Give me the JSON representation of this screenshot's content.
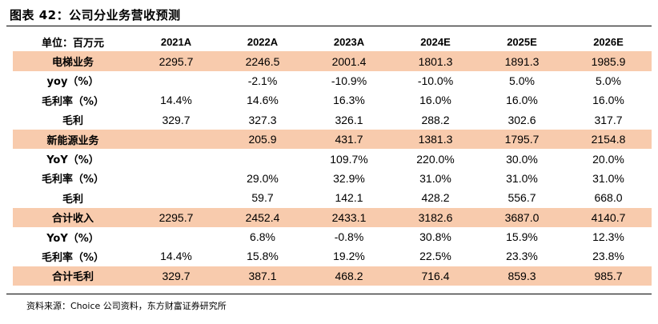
{
  "title": "图表 42：公司分业务营收预测",
  "source": "资料来源：Choice 公司资料，东方财富证券研究所",
  "header": [
    "单位：百万元",
    "2021A",
    "2022A",
    "2023A",
    "2024E",
    "2025E",
    "2026E"
  ],
  "highlight_color": "#f8cbad",
  "rows": [
    {
      "label": "电梯业务",
      "values": [
        "2295.7",
        "2246.5",
        "2001.4",
        "1801.3",
        "1891.3",
        "1985.9"
      ],
      "highlight": true
    },
    {
      "label": "yoy（%）",
      "values": [
        "",
        "-2.1%",
        "-10.9%",
        "-10.0%",
        "5.0%",
        "5.0%"
      ],
      "highlight": false
    },
    {
      "label": "毛利率（%）",
      "values": [
        "14.4%",
        "14.6%",
        "16.3%",
        "16.0%",
        "16.0%",
        "16.0%"
      ],
      "highlight": false
    },
    {
      "label": "毛利",
      "values": [
        "329.7",
        "327.3",
        "326.1",
        "288.2",
        "302.6",
        "317.7"
      ],
      "highlight": false
    },
    {
      "label": "新能源业务",
      "values": [
        "",
        "205.9",
        "431.7",
        "1381.3",
        "1795.7",
        "2154.8"
      ],
      "highlight": true
    },
    {
      "label": "YoY（%）",
      "values": [
        "",
        "",
        "109.7%",
        "220.0%",
        "30.0%",
        "20.0%"
      ],
      "highlight": false
    },
    {
      "label": "毛利率（%）",
      "values": [
        "",
        "29.0%",
        "32.9%",
        "31.0%",
        "31.0%",
        "31.0%"
      ],
      "highlight": false
    },
    {
      "label": "毛利",
      "values": [
        "",
        "59.7",
        "142.1",
        "428.2",
        "556.7",
        "668.0"
      ],
      "highlight": false
    },
    {
      "label": "合计收入",
      "values": [
        "2295.7",
        "2452.4",
        "2433.1",
        "3182.6",
        "3687.0",
        "4140.7"
      ],
      "highlight": true
    },
    {
      "label": "YoY（%）",
      "values": [
        "",
        "6.8%",
        "-0.8%",
        "30.8%",
        "15.9%",
        "12.3%"
      ],
      "highlight": false
    },
    {
      "label": "毛利率（%）",
      "values": [
        "14.4%",
        "15.8%",
        "19.2%",
        "22.5%",
        "23.3%",
        "23.8%"
      ],
      "highlight": false
    },
    {
      "label": "合计毛利",
      "values": [
        "329.7",
        "387.1",
        "468.2",
        "716.4",
        "859.3",
        "985.7"
      ],
      "highlight": true
    }
  ]
}
